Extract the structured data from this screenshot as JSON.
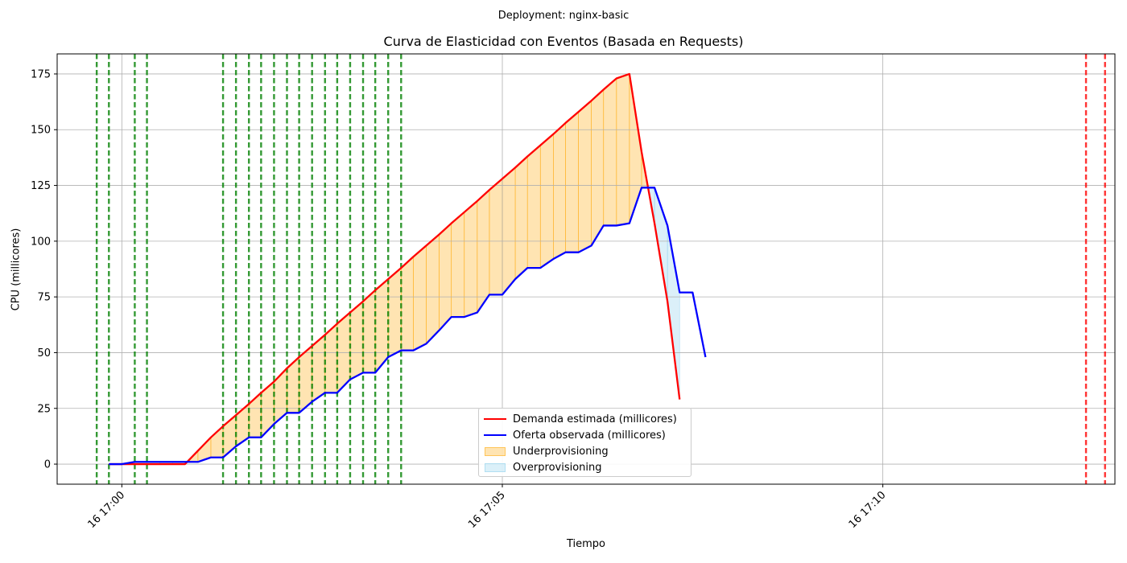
{
  "suptitle": "Deployment: nginx-basic",
  "chart_data": {
    "type": "line",
    "title": "Curva de Elasticidad con Eventos (Basada en Requests)",
    "xlabel": "Tiempo",
    "ylabel": "CPU (millicores)",
    "x_unit": "minutes after 16 17:00",
    "xlim": [
      -0.85,
      13.05
    ],
    "ylim": [
      -9,
      184
    ],
    "yticks": [
      0,
      25,
      50,
      75,
      100,
      125,
      150,
      175
    ],
    "xticks": [
      {
        "value": 0,
        "label": "16 17:00"
      },
      {
        "value": 5,
        "label": "16 17:05"
      },
      {
        "value": 10,
        "label": "16 17:10"
      }
    ],
    "grid": true,
    "legend_position": "lower center",
    "series": [
      {
        "name": "Demanda estimada (millicores)",
        "color": "#ff0000",
        "points": [
          [
            -0.17,
            0
          ],
          [
            0,
            0
          ],
          [
            0.17,
            0
          ],
          [
            0.33,
            0
          ],
          [
            0.5,
            0
          ],
          [
            0.67,
            0
          ],
          [
            0.83,
            0
          ],
          [
            1,
            6
          ],
          [
            1.17,
            12
          ],
          [
            1.33,
            17
          ],
          [
            1.5,
            22
          ],
          [
            1.67,
            27
          ],
          [
            1.83,
            32
          ],
          [
            2,
            37
          ],
          [
            2.17,
            43
          ],
          [
            2.33,
            48
          ],
          [
            2.5,
            53
          ],
          [
            2.67,
            58
          ],
          [
            2.83,
            63
          ],
          [
            3,
            68
          ],
          [
            3.17,
            73
          ],
          [
            3.33,
            78
          ],
          [
            3.5,
            83
          ],
          [
            3.67,
            88
          ],
          [
            3.83,
            93
          ],
          [
            4,
            98
          ],
          [
            4.17,
            103
          ],
          [
            4.33,
            108
          ],
          [
            4.5,
            113
          ],
          [
            4.67,
            118
          ],
          [
            4.83,
            123
          ],
          [
            5,
            128
          ],
          [
            5.17,
            133
          ],
          [
            5.33,
            138
          ],
          [
            5.5,
            143
          ],
          [
            5.67,
            148
          ],
          [
            5.83,
            153
          ],
          [
            6,
            158
          ],
          [
            6.17,
            163
          ],
          [
            6.33,
            168
          ],
          [
            6.5,
            173
          ],
          [
            6.67,
            175
          ],
          [
            6.83,
            140
          ],
          [
            7,
            108
          ],
          [
            7.17,
            73
          ],
          [
            7.33,
            29
          ]
        ]
      },
      {
        "name": "Oferta observada (millicores)",
        "color": "#0000ff",
        "points": [
          [
            -0.17,
            0
          ],
          [
            0,
            0
          ],
          [
            0.17,
            1
          ],
          [
            0.33,
            1
          ],
          [
            0.5,
            1
          ],
          [
            0.67,
            1
          ],
          [
            0.83,
            1
          ],
          [
            1,
            1
          ],
          [
            1.17,
            3
          ],
          [
            1.33,
            3
          ],
          [
            1.5,
            8
          ],
          [
            1.67,
            12
          ],
          [
            1.83,
            12
          ],
          [
            2,
            18
          ],
          [
            2.17,
            23
          ],
          [
            2.33,
            23
          ],
          [
            2.5,
            28
          ],
          [
            2.67,
            32
          ],
          [
            2.83,
            32
          ],
          [
            3,
            38
          ],
          [
            3.17,
            41
          ],
          [
            3.33,
            41
          ],
          [
            3.5,
            48
          ],
          [
            3.67,
            51
          ],
          [
            3.83,
            51
          ],
          [
            4,
            54
          ],
          [
            4.17,
            60
          ],
          [
            4.33,
            66
          ],
          [
            4.5,
            66
          ],
          [
            4.67,
            68
          ],
          [
            4.83,
            76
          ],
          [
            5,
            76
          ],
          [
            5.17,
            83
          ],
          [
            5.33,
            88
          ],
          [
            5.5,
            88
          ],
          [
            5.67,
            92
          ],
          [
            5.83,
            95
          ],
          [
            6,
            95
          ],
          [
            6.17,
            98
          ],
          [
            6.33,
            107
          ],
          [
            6.5,
            107
          ],
          [
            6.67,
            108
          ],
          [
            6.83,
            124
          ],
          [
            7,
            124
          ],
          [
            7.17,
            107
          ],
          [
            7.33,
            77
          ],
          [
            7.5,
            77
          ],
          [
            7.67,
            48
          ]
        ]
      }
    ],
    "fills": [
      {
        "name": "Underprovisioning",
        "color": "#ffa500"
      },
      {
        "name": "Overprovisioning",
        "color": "#87ceeb"
      }
    ],
    "event_lines": [
      {
        "color": "#008000",
        "x": [
          -0.33,
          -0.17,
          0.17,
          0.33,
          1.33,
          1.5,
          1.67,
          1.83,
          2,
          2.17,
          2.33,
          2.5,
          2.67,
          2.83,
          3,
          3.17,
          3.33,
          3.5,
          3.67
        ]
      },
      {
        "color": "#ff0000",
        "x": [
          12.67,
          12.92
        ]
      }
    ]
  }
}
